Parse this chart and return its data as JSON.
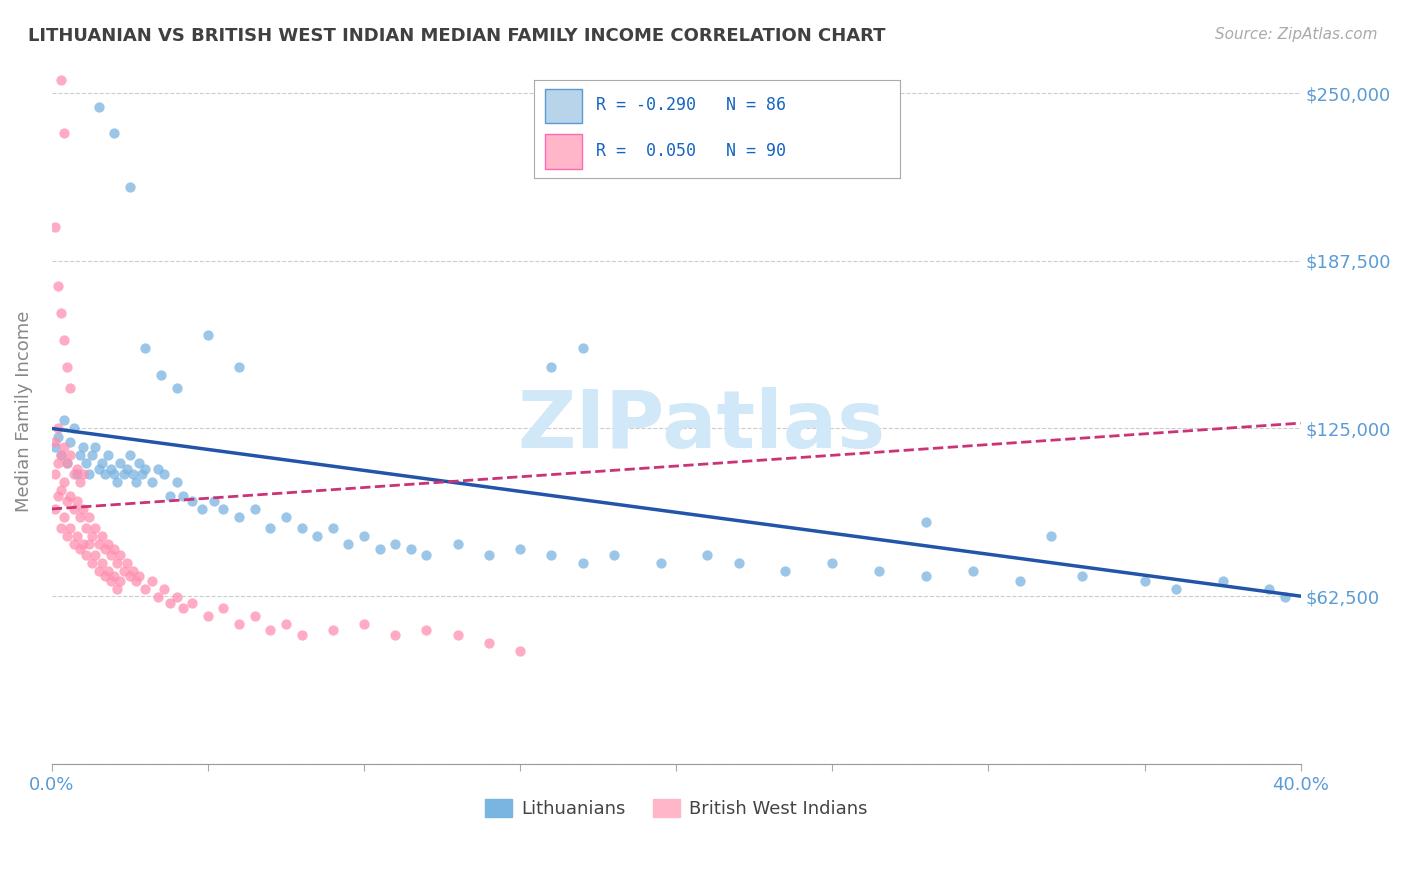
{
  "title": "LITHUANIAN VS BRITISH WEST INDIAN MEDIAN FAMILY INCOME CORRELATION CHART",
  "source": "Source: ZipAtlas.com",
  "ylabel": "Median Family Income",
  "xlim": [
    0.0,
    0.4
  ],
  "ylim": [
    0,
    262500
  ],
  "yticks": [
    0,
    62500,
    125000,
    187500,
    250000
  ],
  "ytick_labels": [
    "",
    "$62,500",
    "$125,000",
    "$187,500",
    "$250,000"
  ],
  "xticks": [
    0.0,
    0.05,
    0.1,
    0.15,
    0.2,
    0.25,
    0.3,
    0.35,
    0.4
  ],
  "xtick_labels_visible": [
    "0.0%",
    "40.0%"
  ],
  "xtick_visible_pos": [
    0.0,
    0.4
  ],
  "background_color": "#ffffff",
  "grid_color": "#cccccc",
  "tick_label_color": "#5b9bd5",
  "title_color": "#404040",
  "watermark_text": "ZIPatlas",
  "watermark_color": "#d0e8f8",
  "legend_box_color": "#ffffff",
  "legend_border_color": "#aaaaaa",
  "legend_blue_fill": "#b8d4ea",
  "legend_blue_border": "#5b9bd5",
  "legend_pink_fill": "#ffb6c8",
  "legend_pink_border": "#ff69b4",
  "legend_text_color": "#1565c0",
  "legend_line1": "R = -0.290   N = 86",
  "legend_line2": "R =  0.050   N = 90",
  "bottom_legend_labels": [
    "Lithuanians",
    "British West Indians"
  ],
  "bottom_legend_colors": [
    "#7ab4e0",
    "#ffb6c8"
  ],
  "scatter_blue_color": "#7ab4e0",
  "scatter_pink_color": "#ff8fb0",
  "scatter_alpha": 0.75,
  "scatter_size": 55,
  "regression_blue_color": "#2255aa",
  "regression_blue_lw": 2.5,
  "regression_pink_color": "#cc3377",
  "regression_pink_lw": 2.0,
  "regression_blue_y0": 125000,
  "regression_blue_y1": 62500,
  "regression_pink_y0": 95000,
  "regression_pink_y1": 127000,
  "blue_x": [
    0.001,
    0.002,
    0.003,
    0.004,
    0.005,
    0.006,
    0.007,
    0.008,
    0.009,
    0.01,
    0.011,
    0.012,
    0.013,
    0.014,
    0.015,
    0.016,
    0.017,
    0.018,
    0.019,
    0.02,
    0.021,
    0.022,
    0.023,
    0.024,
    0.025,
    0.026,
    0.027,
    0.028,
    0.029,
    0.03,
    0.032,
    0.034,
    0.036,
    0.038,
    0.04,
    0.042,
    0.045,
    0.048,
    0.052,
    0.055,
    0.06,
    0.065,
    0.07,
    0.075,
    0.08,
    0.085,
    0.09,
    0.095,
    0.1,
    0.105,
    0.11,
    0.115,
    0.12,
    0.13,
    0.14,
    0.15,
    0.16,
    0.17,
    0.18,
    0.195,
    0.21,
    0.22,
    0.235,
    0.25,
    0.265,
    0.28,
    0.295,
    0.31,
    0.33,
    0.35,
    0.36,
    0.375,
    0.39,
    0.395,
    0.28,
    0.32,
    0.015,
    0.02,
    0.025,
    0.03,
    0.035,
    0.04,
    0.05,
    0.06,
    0.16,
    0.17
  ],
  "blue_y": [
    118000,
    122000,
    115000,
    128000,
    112000,
    120000,
    125000,
    108000,
    115000,
    118000,
    112000,
    108000,
    115000,
    118000,
    110000,
    112000,
    108000,
    115000,
    110000,
    108000,
    105000,
    112000,
    108000,
    110000,
    115000,
    108000,
    105000,
    112000,
    108000,
    110000,
    105000,
    110000,
    108000,
    100000,
    105000,
    100000,
    98000,
    95000,
    98000,
    95000,
    92000,
    95000,
    88000,
    92000,
    88000,
    85000,
    88000,
    82000,
    85000,
    80000,
    82000,
    80000,
    78000,
    82000,
    78000,
    80000,
    78000,
    75000,
    78000,
    75000,
    78000,
    75000,
    72000,
    75000,
    72000,
    70000,
    72000,
    68000,
    70000,
    68000,
    65000,
    68000,
    65000,
    62000,
    90000,
    85000,
    245000,
    235000,
    215000,
    155000,
    145000,
    140000,
    160000,
    148000,
    148000,
    155000
  ],
  "pink_x": [
    0.001,
    0.002,
    0.003,
    0.004,
    0.005,
    0.006,
    0.007,
    0.008,
    0.009,
    0.01,
    0.011,
    0.012,
    0.013,
    0.014,
    0.015,
    0.016,
    0.017,
    0.018,
    0.019,
    0.02,
    0.021,
    0.022,
    0.001,
    0.002,
    0.003,
    0.004,
    0.005,
    0.006,
    0.007,
    0.008,
    0.009,
    0.01,
    0.011,
    0.012,
    0.013,
    0.014,
    0.015,
    0.016,
    0.017,
    0.018,
    0.019,
    0.02,
    0.021,
    0.022,
    0.023,
    0.024,
    0.025,
    0.026,
    0.027,
    0.028,
    0.03,
    0.032,
    0.034,
    0.036,
    0.038,
    0.04,
    0.042,
    0.045,
    0.05,
    0.055,
    0.06,
    0.065,
    0.07,
    0.075,
    0.08,
    0.09,
    0.1,
    0.11,
    0.12,
    0.13,
    0.14,
    0.15,
    0.001,
    0.002,
    0.003,
    0.004,
    0.005,
    0.006,
    0.007,
    0.008,
    0.009,
    0.01,
    0.003,
    0.004,
    0.002,
    0.003,
    0.004,
    0.005,
    0.006,
    0.001
  ],
  "pink_y": [
    95000,
    100000,
    88000,
    92000,
    85000,
    88000,
    82000,
    85000,
    80000,
    82000,
    78000,
    82000,
    75000,
    78000,
    72000,
    75000,
    70000,
    72000,
    68000,
    70000,
    65000,
    68000,
    108000,
    112000,
    102000,
    105000,
    98000,
    100000,
    95000,
    98000,
    92000,
    95000,
    88000,
    92000,
    85000,
    88000,
    82000,
    85000,
    80000,
    82000,
    78000,
    80000,
    75000,
    78000,
    72000,
    75000,
    70000,
    72000,
    68000,
    70000,
    65000,
    68000,
    62000,
    65000,
    60000,
    62000,
    58000,
    60000,
    55000,
    58000,
    52000,
    55000,
    50000,
    52000,
    48000,
    50000,
    52000,
    48000,
    50000,
    48000,
    45000,
    42000,
    120000,
    125000,
    115000,
    118000,
    112000,
    115000,
    108000,
    110000,
    105000,
    108000,
    255000,
    235000,
    178000,
    168000,
    158000,
    148000,
    140000,
    200000
  ]
}
